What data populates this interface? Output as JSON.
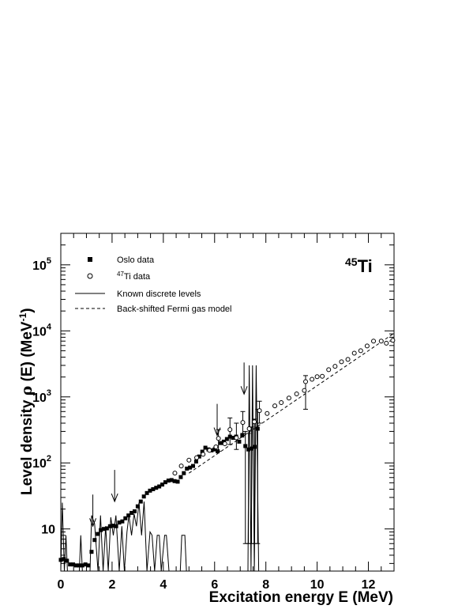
{
  "chart_data": {
    "type": "scatter",
    "title": "",
    "annotation": {
      "mass_number": "45",
      "element": "Ti"
    },
    "xlabel": "Excitation energy E (MeV)",
    "ylabel": {
      "prefix": "Level density ",
      "rho": "ρ",
      "middle": " (E) (MeV",
      "sup": "-1",
      "suffix": ")"
    },
    "xlim": [
      0,
      13
    ],
    "ylim": [
      2.3,
      300000
    ],
    "yscale": "log",
    "x_ticks": [
      0,
      2,
      4,
      6,
      8,
      10,
      12
    ],
    "y_major_ticks": [
      {
        "value": 10,
        "base": "10",
        "exp": ""
      },
      {
        "value": 100,
        "base": "10",
        "exp": "2"
      },
      {
        "value": 1000,
        "base": "10",
        "exp": "3"
      },
      {
        "value": 10000,
        "base": "10",
        "exp": "4"
      },
      {
        "value": 100000,
        "base": "10",
        "exp": "5"
      }
    ],
    "legend": {
      "position": "top-left",
      "entries": [
        {
          "marker": "filled-square",
          "label": "Oslo data"
        },
        {
          "marker": "open-circle",
          "sup": "47",
          "label": "Ti data"
        },
        {
          "marker": "solid-line",
          "label": "Known discrete levels"
        },
        {
          "marker": "dashed-line",
          "label": "Back-shifted Fermi gas model"
        }
      ]
    },
    "series": [
      {
        "name": "Oslo data",
        "marker": "filled-square",
        "points": [
          [
            0.0,
            3.4
          ],
          [
            0.12,
            3.5
          ],
          [
            0.24,
            3.3
          ],
          [
            0.36,
            2.9
          ],
          [
            0.48,
            2.9
          ],
          [
            0.6,
            2.8
          ],
          [
            0.72,
            2.8
          ],
          [
            0.84,
            2.8
          ],
          [
            0.96,
            2.9
          ],
          [
            1.08,
            2.8
          ],
          [
            1.2,
            4.5
          ],
          [
            1.32,
            6.8
          ],
          [
            1.44,
            8.4
          ],
          [
            1.56,
            9.6
          ],
          [
            1.68,
            10.0
          ],
          [
            1.8,
            10.2
          ],
          [
            1.92,
            11.0
          ],
          [
            2.04,
            11.2
          ],
          [
            2.16,
            11.0
          ],
          [
            2.28,
            12.5
          ],
          [
            2.4,
            13.0
          ],
          [
            2.52,
            14.5
          ],
          [
            2.64,
            16.0
          ],
          [
            2.76,
            17.5
          ],
          [
            2.88,
            18.5
          ],
          [
            3.0,
            22.0
          ],
          [
            3.12,
            26.0
          ],
          [
            3.24,
            31.0
          ],
          [
            3.36,
            35.0
          ],
          [
            3.48,
            38.0
          ],
          [
            3.6,
            40.0
          ],
          [
            3.72,
            42.0
          ],
          [
            3.84,
            44.0
          ],
          [
            3.96,
            47.0
          ],
          [
            4.08,
            51.0
          ],
          [
            4.2,
            54.0
          ],
          [
            4.32,
            55.0
          ],
          [
            4.44,
            53.0
          ],
          [
            4.56,
            52.0
          ],
          [
            4.68,
            61.0
          ],
          [
            4.8,
            70.0
          ],
          [
            4.92,
            82.0
          ],
          [
            5.04,
            85.0
          ],
          [
            5.16,
            90.0
          ],
          [
            5.28,
            105.0
          ],
          [
            5.4,
            125.0
          ],
          [
            5.52,
            148.0
          ],
          [
            5.64,
            170.0
          ],
          [
            5.76,
            160.0
          ],
          [
            5.88,
            155.0
          ],
          [
            6.0,
            160.0
          ],
          [
            6.12,
            150.0
          ],
          [
            6.24,
            200.0
          ],
          [
            6.36,
            210.0
          ],
          [
            6.48,
            230.0
          ],
          [
            6.6,
            250.0
          ],
          [
            6.72,
            240.0
          ],
          [
            6.84,
            250.0
          ],
          [
            6.96,
            210.0
          ],
          [
            7.08,
            260.0
          ],
          [
            7.2,
            180.0
          ],
          [
            7.32,
            160.0
          ],
          [
            7.44,
            165.0
          ],
          [
            7.56,
            175.0
          ],
          [
            7.68,
            330.0
          ]
        ]
      },
      {
        "name": "47Ti data",
        "marker": "open-circle",
        "points": [
          [
            4.45,
            70
          ],
          [
            4.7,
            90
          ],
          [
            5.0,
            110
          ],
          [
            5.3,
            120
          ],
          [
            5.55,
            135
          ],
          [
            5.8,
            155
          ],
          [
            6.05,
            175
          ],
          [
            6.15,
            235
          ],
          [
            6.4,
            195
          ],
          [
            6.6,
            320
          ],
          [
            6.85,
            240
          ],
          [
            7.1,
            410
          ],
          [
            7.35,
            330
          ],
          [
            7.55,
            420
          ],
          [
            7.75,
            620
          ],
          [
            8.05,
            560
          ],
          [
            8.35,
            730
          ],
          [
            8.6,
            820
          ],
          [
            8.9,
            960
          ],
          [
            9.2,
            1110
          ],
          [
            9.5,
            1250
          ],
          [
            9.55,
            1700
          ],
          [
            9.8,
            1850
          ],
          [
            10.0,
            2020
          ],
          [
            10.2,
            2050
          ],
          [
            10.45,
            2580
          ],
          [
            10.7,
            2900
          ],
          [
            10.95,
            3400
          ],
          [
            11.2,
            3700
          ],
          [
            11.45,
            4600
          ],
          [
            11.7,
            5000
          ],
          [
            11.95,
            5900
          ],
          [
            12.2,
            7000
          ],
          [
            12.5,
            7000
          ],
          [
            12.7,
            6500
          ],
          [
            12.95,
            7200
          ]
        ]
      },
      {
        "name": "Known discrete levels",
        "line": "solid",
        "points": [
          [
            0,
            2.3
          ],
          [
            0.06,
            25
          ],
          [
            0.14,
            2.3
          ],
          [
            0.2,
            8
          ],
          [
            0.26,
            2.3
          ],
          [
            0.72,
            2.3
          ],
          [
            0.78,
            8
          ],
          [
            0.84,
            2.3
          ],
          [
            1.14,
            2.3
          ],
          [
            1.2,
            16
          ],
          [
            1.32,
            12
          ],
          [
            1.45,
            2.3
          ],
          [
            1.55,
            16
          ],
          [
            1.65,
            2.3
          ],
          [
            1.75,
            11
          ],
          [
            1.85,
            2.3
          ],
          [
            1.95,
            15
          ],
          [
            2.05,
            8
          ],
          [
            2.15,
            16
          ],
          [
            2.28,
            2.3
          ],
          [
            2.38,
            11
          ],
          [
            2.48,
            2.3
          ],
          [
            2.58,
            9
          ],
          [
            2.66,
            16
          ],
          [
            2.76,
            8
          ],
          [
            2.86,
            17
          ],
          [
            2.95,
            11
          ],
          [
            3.05,
            25
          ],
          [
            3.15,
            8
          ],
          [
            3.25,
            26
          ],
          [
            3.36,
            2.3
          ],
          [
            3.48,
            9
          ],
          [
            3.56,
            8
          ],
          [
            3.66,
            2.3
          ],
          [
            3.76,
            8
          ],
          [
            3.84,
            8
          ],
          [
            3.92,
            2.3
          ],
          [
            4.05,
            8
          ],
          [
            4.12,
            8
          ],
          [
            4.22,
            2.3
          ],
          [
            4.66,
            2.3
          ],
          [
            4.72,
            8
          ],
          [
            4.84,
            8
          ],
          [
            4.9,
            2.3
          ],
          [
            7.3,
            2.3
          ],
          [
            7.35,
            3000
          ],
          [
            7.42,
            2.3
          ],
          [
            7.48,
            3000
          ],
          [
            7.55,
            2.3
          ],
          [
            7.62,
            3000
          ],
          [
            7.72,
            2.3
          ]
        ]
      },
      {
        "name": "Back-shifted Fermi gas model",
        "line": "dashed",
        "points": [
          [
            5.0,
            70
          ],
          [
            13.0,
            9200
          ]
        ]
      }
    ],
    "error_bars": [
      {
        "x": 6.15,
        "lo": 150,
        "hi": 320
      },
      {
        "x": 6.6,
        "lo": 190,
        "hi": 480
      },
      {
        "x": 6.85,
        "lo": 160,
        "hi": 400
      },
      {
        "x": 7.1,
        "lo": 280,
        "hi": 600
      },
      {
        "x": 7.2,
        "lo": 6,
        "hi": 300
      },
      {
        "x": 7.32,
        "lo": 6,
        "hi": 280
      },
      {
        "x": 7.44,
        "lo": 6,
        "hi": 350
      },
      {
        "x": 7.56,
        "lo": 6,
        "hi": 460
      },
      {
        "x": 7.68,
        "lo": 6,
        "hi": 650
      },
      {
        "x": 7.75,
        "lo": 400,
        "hi": 860
      },
      {
        "x": 9.55,
        "lo": 650,
        "hi": 2100
      }
    ],
    "arrows": [
      {
        "x": 1.25,
        "y": 11.0
      },
      {
        "x": 2.1,
        "y": 26.0
      },
      {
        "x": 6.1,
        "y": 260.0
      },
      {
        "x": 7.15,
        "y": 1100.0
      }
    ]
  }
}
